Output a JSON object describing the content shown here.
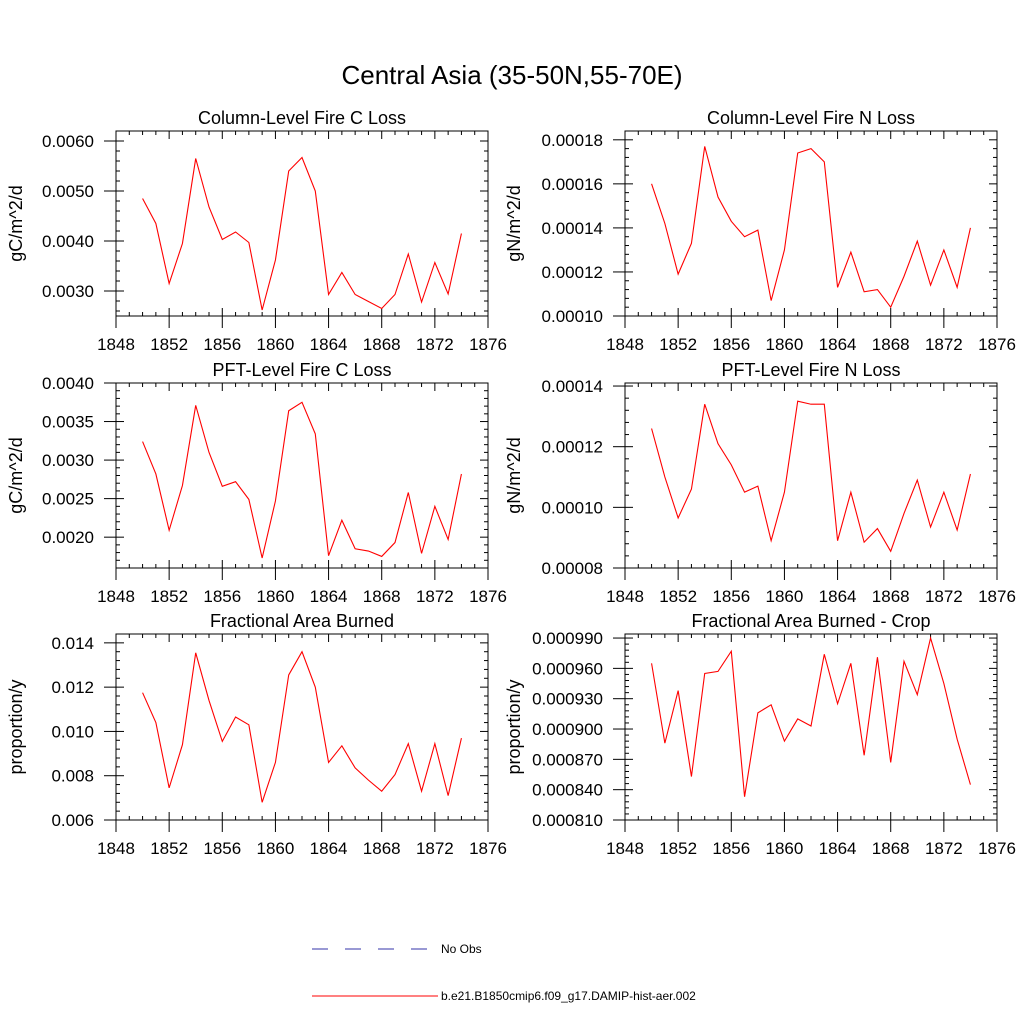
{
  "title": "Central Asia (35-50N,55-70E)",
  "series_color": "#ff0000",
  "legend": {
    "obs_label": "No Obs",
    "obs_color": "#3333aa",
    "model_label": "b.e21.B1850cmip6.f09_g17.DAMIP-hist-aer.002",
    "model_color": "#ff0000"
  },
  "chart_data": [
    {
      "type": "line",
      "title": "Column-Level Fire C Loss",
      "ylabel": "gC/m^2/d",
      "xlim": [
        1848,
        1876
      ],
      "ylim": [
        0.0025,
        0.0062
      ],
      "xticks": [
        1848,
        1852,
        1856,
        1860,
        1864,
        1868,
        1872,
        1876
      ],
      "yticks": [
        "0.0030",
        "0.0040",
        "0.0050",
        "0.0060"
      ],
      "x": [
        1850,
        1851,
        1852,
        1853,
        1854,
        1855,
        1856,
        1857,
        1858,
        1859,
        1860,
        1861,
        1862,
        1863,
        1864,
        1865,
        1866,
        1867,
        1868,
        1869,
        1870,
        1871,
        1872,
        1873,
        1874
      ],
      "series": [
        {
          "values": [
            0.00485,
            0.00435,
            0.00315,
            0.00395,
            0.00565,
            0.00468,
            0.00403,
            0.00418,
            0.00397,
            0.00262,
            0.00362,
            0.0054,
            0.00567,
            0.005,
            0.00293,
            0.00337,
            0.00293,
            0.00279,
            0.00265,
            0.00293,
            0.00374,
            0.00278,
            0.00357,
            0.00294,
            0.00415
          ]
        }
      ]
    },
    {
      "type": "line",
      "title": "Column-Level Fire N Loss",
      "ylabel": "gN/m^2/d",
      "xlim": [
        1848,
        1876
      ],
      "ylim": [
        0.0001,
        0.000184
      ],
      "xticks": [
        1848,
        1852,
        1856,
        1860,
        1864,
        1868,
        1872,
        1876
      ],
      "yticks": [
        "0.00010",
        "0.00012",
        "0.00014",
        "0.00016",
        "0.00018"
      ],
      "x": [
        1850,
        1851,
        1852,
        1853,
        1854,
        1855,
        1856,
        1857,
        1858,
        1859,
        1860,
        1861,
        1862,
        1863,
        1864,
        1865,
        1866,
        1867,
        1868,
        1869,
        1870,
        1871,
        1872,
        1873,
        1874
      ],
      "series": [
        {
          "values": [
            0.00016,
            0.000142,
            0.000119,
            0.000133,
            0.000177,
            0.000154,
            0.000143,
            0.000136,
            0.000139,
            0.000107,
            0.00013,
            0.000174,
            0.000176,
            0.00017,
            0.000113,
            0.000129,
            0.000111,
            0.000112,
            0.000104,
            0.000118,
            0.000134,
            0.000114,
            0.00013,
            0.000113,
            0.00014
          ]
        }
      ]
    },
    {
      "type": "line",
      "title": "PFT-Level Fire C Loss",
      "ylabel": "gC/m^2/d",
      "xlim": [
        1848,
        1876
      ],
      "ylim": [
        0.0016,
        0.004
      ],
      "xticks": [
        1848,
        1852,
        1856,
        1860,
        1864,
        1868,
        1872,
        1876
      ],
      "yticks": [
        "0.0020",
        "0.0025",
        "0.0030",
        "0.0035",
        "0.0040"
      ],
      "x": [
        1850,
        1851,
        1852,
        1853,
        1854,
        1855,
        1856,
        1857,
        1858,
        1859,
        1860,
        1861,
        1862,
        1863,
        1864,
        1865,
        1866,
        1867,
        1868,
        1869,
        1870,
        1871,
        1872,
        1873,
        1874
      ],
      "series": [
        {
          "values": [
            0.00324,
            0.00282,
            0.00209,
            0.00267,
            0.00371,
            0.0031,
            0.00266,
            0.00272,
            0.00249,
            0.00173,
            0.00247,
            0.00364,
            0.00375,
            0.00334,
            0.00176,
            0.00222,
            0.00185,
            0.00182,
            0.00175,
            0.00193,
            0.00258,
            0.00179,
            0.0024,
            0.00197,
            0.00282
          ]
        }
      ]
    },
    {
      "type": "line",
      "title": "PFT-Level Fire N Loss",
      "ylabel": "gN/m^2/d",
      "xlim": [
        1848,
        1876
      ],
      "ylim": [
        8e-05,
        0.000141
      ],
      "xticks": [
        1848,
        1852,
        1856,
        1860,
        1864,
        1868,
        1872,
        1876
      ],
      "yticks": [
        "0.00008",
        "0.00010",
        "0.00012",
        "0.00014"
      ],
      "x": [
        1850,
        1851,
        1852,
        1853,
        1854,
        1855,
        1856,
        1857,
        1858,
        1859,
        1860,
        1861,
        1862,
        1863,
        1864,
        1865,
        1866,
        1867,
        1868,
        1869,
        1870,
        1871,
        1872,
        1873,
        1874
      ],
      "series": [
        {
          "values": [
            0.000126,
            0.00011,
            9.65e-05,
            0.000106,
            0.000134,
            0.000121,
            0.000114,
            0.000105,
            0.000107,
            8.9e-05,
            0.000105,
            0.000135,
            0.000134,
            0.000134,
            8.9e-05,
            0.000105,
            8.85e-05,
            9.3e-05,
            8.55e-05,
            9.8e-05,
            0.000109,
            9.35e-05,
            0.000105,
            9.25e-05,
            0.000111
          ]
        }
      ]
    },
    {
      "type": "line",
      "title": "Fractional Area Burned",
      "ylabel": "proportion/y",
      "xlim": [
        1848,
        1876
      ],
      "ylim": [
        0.006,
        0.0144
      ],
      "xticks": [
        1848,
        1852,
        1856,
        1860,
        1864,
        1868,
        1872,
        1876
      ],
      "yticks": [
        "0.006",
        "0.008",
        "0.010",
        "0.012",
        "0.014"
      ],
      "x": [
        1850,
        1851,
        1852,
        1853,
        1854,
        1855,
        1856,
        1857,
        1858,
        1859,
        1860,
        1861,
        1862,
        1863,
        1864,
        1865,
        1866,
        1867,
        1868,
        1869,
        1870,
        1871,
        1872,
        1873,
        1874
      ],
      "series": [
        {
          "values": [
            0.01175,
            0.0104,
            0.00745,
            0.0094,
            0.01355,
            0.0114,
            0.00955,
            0.01065,
            0.0103,
            0.0068,
            0.0086,
            0.01255,
            0.0136,
            0.012,
            0.0086,
            0.00935,
            0.00835,
            0.0078,
            0.0073,
            0.00805,
            0.00945,
            0.0073,
            0.00945,
            0.0071,
            0.0097
          ]
        }
      ]
    },
    {
      "type": "line",
      "title": "Fractional Area Burned - Crop",
      "ylabel": "proportion/y",
      "xlim": [
        1848,
        1876
      ],
      "ylim": [
        0.00081,
        0.000994
      ],
      "xticks": [
        1848,
        1852,
        1856,
        1860,
        1864,
        1868,
        1872,
        1876
      ],
      "yticks": [
        "0.000810",
        "0.000840",
        "0.000870",
        "0.000900",
        "0.000930",
        "0.000960",
        "0.000990"
      ],
      "x": [
        1850,
        1851,
        1852,
        1853,
        1854,
        1855,
        1856,
        1857,
        1858,
        1859,
        1860,
        1861,
        1862,
        1863,
        1864,
        1865,
        1866,
        1867,
        1868,
        1869,
        1870,
        1871,
        1872,
        1873,
        1874
      ],
      "series": [
        {
          "values": [
            0.000965,
            0.000886,
            0.000938,
            0.000853,
            0.000955,
            0.000957,
            0.000977,
            0.000833,
            0.000916,
            0.000924,
            0.000888,
            0.00091,
            0.000903,
            0.000974,
            0.000925,
            0.000965,
            0.000874,
            0.000971,
            0.000867,
            0.000967,
            0.000934,
            0.00099,
            0.000945,
            0.00089,
            0.000845
          ]
        }
      ]
    }
  ]
}
